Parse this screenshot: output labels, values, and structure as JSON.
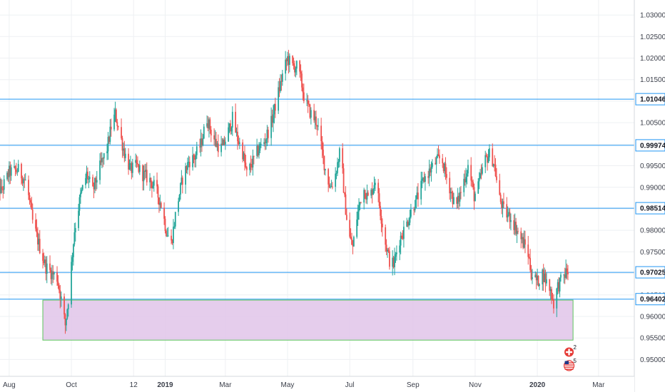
{
  "chart_data": {
    "type": "candlestick",
    "title": "",
    "xlabel": "",
    "ylabel": "",
    "ylim": [
      0.9475,
      1.0325
    ],
    "x_range": [
      "2018-07-16",
      "2020-03-20"
    ],
    "grid": true,
    "y_ticks": [
      "1.03000",
      "1.02500",
      "1.02000",
      "1.01500",
      "1.01000",
      "1.00500",
      "1.00000",
      "0.99500",
      "0.99000",
      "0.98500",
      "0.98000",
      "0.97500",
      "0.97000",
      "0.96500",
      "0.96000",
      "0.95500",
      "0.95000"
    ],
    "x_ticks": [
      {
        "label": "Aug",
        "date": "2018-08-01",
        "year": false
      },
      {
        "label": "Oct",
        "date": "2018-10-01",
        "year": false
      },
      {
        "label": "12",
        "date": "2018-12-01",
        "year": false
      },
      {
        "label": "2019",
        "date": "2019-01-01",
        "year": true
      },
      {
        "label": "Mar",
        "date": "2019-03-01",
        "year": false
      },
      {
        "label": "May",
        "date": "2019-05-01",
        "year": false
      },
      {
        "label": "Jul",
        "date": "2019-07-01",
        "year": false
      },
      {
        "label": "Sep",
        "date": "2019-09-01",
        "year": false
      },
      {
        "label": "Nov",
        "date": "2019-11-01",
        "year": false
      },
      {
        "label": "2020",
        "date": "2020-01-01",
        "year": true
      },
      {
        "label": "Mar",
        "date": "2020-03-01",
        "year": false
      }
    ],
    "horizontal_lines": [
      {
        "value": 1.01046,
        "label": "1.01046"
      },
      {
        "value": 0.99974,
        "label": "0.99974"
      },
      {
        "value": 0.98514,
        "label": "0.98514"
      },
      {
        "value": 0.97025,
        "label": "0.97025"
      },
      {
        "value": 0.96402,
        "label": "0.96402"
      }
    ],
    "zone": {
      "x_start": "2018-09-03",
      "x_end": "2020-02-05",
      "y_low": 0.9545,
      "y_high": 0.9638,
      "color": "#e1c4e9",
      "border": "#5cc45c"
    },
    "colors": {
      "up": "#26a69a",
      "down": "#ef5350",
      "line": "#2196f3",
      "zone_fill": "#e1c4e9",
      "zone_border": "#5cc45c"
    },
    "path": [
      [
        "2018-07-16",
        0.993
      ],
      [
        "2018-07-24",
        0.989
      ],
      [
        "2018-08-01",
        0.9935
      ],
      [
        "2018-08-10",
        0.994
      ],
      [
        "2018-08-18",
        0.991
      ],
      [
        "2018-08-24",
        0.982
      ],
      [
        "2018-08-31",
        0.976
      ],
      [
        "2018-09-06",
        0.9715
      ],
      [
        "2018-09-12",
        0.97
      ],
      [
        "2018-09-17",
        0.969
      ],
      [
        "2018-09-21",
        0.964
      ],
      [
        "2018-09-25",
        0.958
      ],
      [
        "2018-09-28",
        0.964
      ],
      [
        "2018-10-04",
        0.98
      ],
      [
        "2018-10-10",
        0.988
      ],
      [
        "2018-10-16",
        0.993
      ],
      [
        "2018-10-22",
        0.989
      ],
      [
        "2018-10-28",
        0.994
      ],
      [
        "2018-11-05",
        0.999
      ],
      [
        "2018-11-09",
        1.004
      ],
      [
        "2018-11-13",
        1.007
      ],
      [
        "2018-11-16",
        1.004
      ],
      [
        "2018-11-22",
        0.998
      ],
      [
        "2018-11-28",
        0.994
      ],
      [
        "2018-12-04",
        0.995
      ],
      [
        "2018-12-10",
        0.993
      ],
      [
        "2018-12-16",
        0.992
      ],
      [
        "2018-12-22",
        0.99
      ],
      [
        "2018-12-28",
        0.986
      ],
      [
        "2019-01-02",
        0.98
      ],
      [
        "2019-01-07",
        0.977
      ],
      [
        "2019-01-12",
        0.985
      ],
      [
        "2019-01-18",
        0.992
      ],
      [
        "2019-01-24",
        0.996
      ],
      [
        "2019-01-30",
        0.997
      ],
      [
        "2019-02-05",
        1.0
      ],
      [
        "2019-02-11",
        1.006
      ],
      [
        "2019-02-15",
        1.003
      ],
      [
        "2019-02-20",
        1.0
      ],
      [
        "2019-02-26",
        0.999
      ],
      [
        "2019-03-04",
        1.003
      ],
      [
        "2019-03-08",
        1.006
      ],
      [
        "2019-03-12",
        1.002
      ],
      [
        "2019-03-18",
        0.998
      ],
      [
        "2019-03-22",
        0.993
      ],
      [
        "2019-03-28",
        0.996
      ],
      [
        "2019-04-03",
        0.999
      ],
      [
        "2019-04-09",
        1.001
      ],
      [
        "2019-04-15",
        1.005
      ],
      [
        "2019-04-20",
        1.01
      ],
      [
        "2019-04-26",
        1.016
      ],
      [
        "2019-05-01",
        1.02
      ],
      [
        "2019-05-06",
        1.018
      ],
      [
        "2019-05-10",
        1.018
      ],
      [
        "2019-05-14",
        1.015
      ],
      [
        "2019-05-18",
        1.01
      ],
      [
        "2019-05-24",
        1.007
      ],
      [
        "2019-05-30",
        1.005
      ],
      [
        "2019-06-04",
        0.998
      ],
      [
        "2019-06-08",
        0.993
      ],
      [
        "2019-06-12",
        0.99
      ],
      [
        "2019-06-16",
        0.992
      ],
      [
        "2019-06-22",
        0.999
      ],
      [
        "2019-06-26",
        0.987
      ],
      [
        "2019-06-30",
        0.979
      ],
      [
        "2019-07-04",
        0.976
      ],
      [
        "2019-07-08",
        0.983
      ],
      [
        "2019-07-14",
        0.99
      ],
      [
        "2019-07-20",
        0.987
      ],
      [
        "2019-07-26",
        0.992
      ],
      [
        "2019-08-01",
        0.983
      ],
      [
        "2019-08-05",
        0.977
      ],
      [
        "2019-08-09",
        0.973
      ],
      [
        "2019-08-13",
        0.972
      ],
      [
        "2019-08-19",
        0.978
      ],
      [
        "2019-08-25",
        0.981
      ],
      [
        "2019-08-31",
        0.985
      ],
      [
        "2019-09-06",
        0.988
      ],
      [
        "2019-09-12",
        0.992
      ],
      [
        "2019-09-18",
        0.994
      ],
      [
        "2019-09-24",
        0.996
      ],
      [
        "2019-09-29",
        0.997
      ],
      [
        "2019-10-03",
        0.993
      ],
      [
        "2019-10-07",
        0.99
      ],
      [
        "2019-10-13",
        0.985
      ],
      [
        "2019-10-19",
        0.99
      ],
      [
        "2019-10-25",
        0.995
      ],
      [
        "2019-10-31",
        0.988
      ],
      [
        "2019-11-04",
        0.99
      ],
      [
        "2019-11-10",
        0.996
      ],
      [
        "2019-11-16",
        0.998
      ],
      [
        "2019-11-20",
        0.995
      ],
      [
        "2019-11-24",
        0.988
      ],
      [
        "2019-11-30",
        0.984
      ],
      [
        "2019-12-06",
        0.983
      ],
      [
        "2019-12-12",
        0.98
      ],
      [
        "2019-12-18",
        0.977
      ],
      [
        "2019-12-22",
        0.976
      ],
      [
        "2019-12-26",
        0.97
      ],
      [
        "2020-01-01",
        0.968
      ],
      [
        "2020-01-06",
        0.97
      ],
      [
        "2020-01-10",
        0.968
      ],
      [
        "2020-01-14",
        0.966
      ],
      [
        "2020-01-17",
        0.963
      ],
      [
        "2020-01-21",
        0.967
      ],
      [
        "2020-01-26",
        0.969
      ],
      [
        "2020-01-30",
        0.9705
      ],
      [
        "2020-02-02",
        0.9702
      ]
    ]
  },
  "axis": {
    "y_tags": [
      "1.01046",
      "0.99974",
      "0.98514",
      "0.97025",
      "0.96402"
    ]
  },
  "events": [
    {
      "name": "swiss-flag-event-icon",
      "count": "2",
      "date": "2020-01-30"
    },
    {
      "name": "us-flag-event-icon",
      "count": "5",
      "date": "2020-01-30"
    }
  ]
}
